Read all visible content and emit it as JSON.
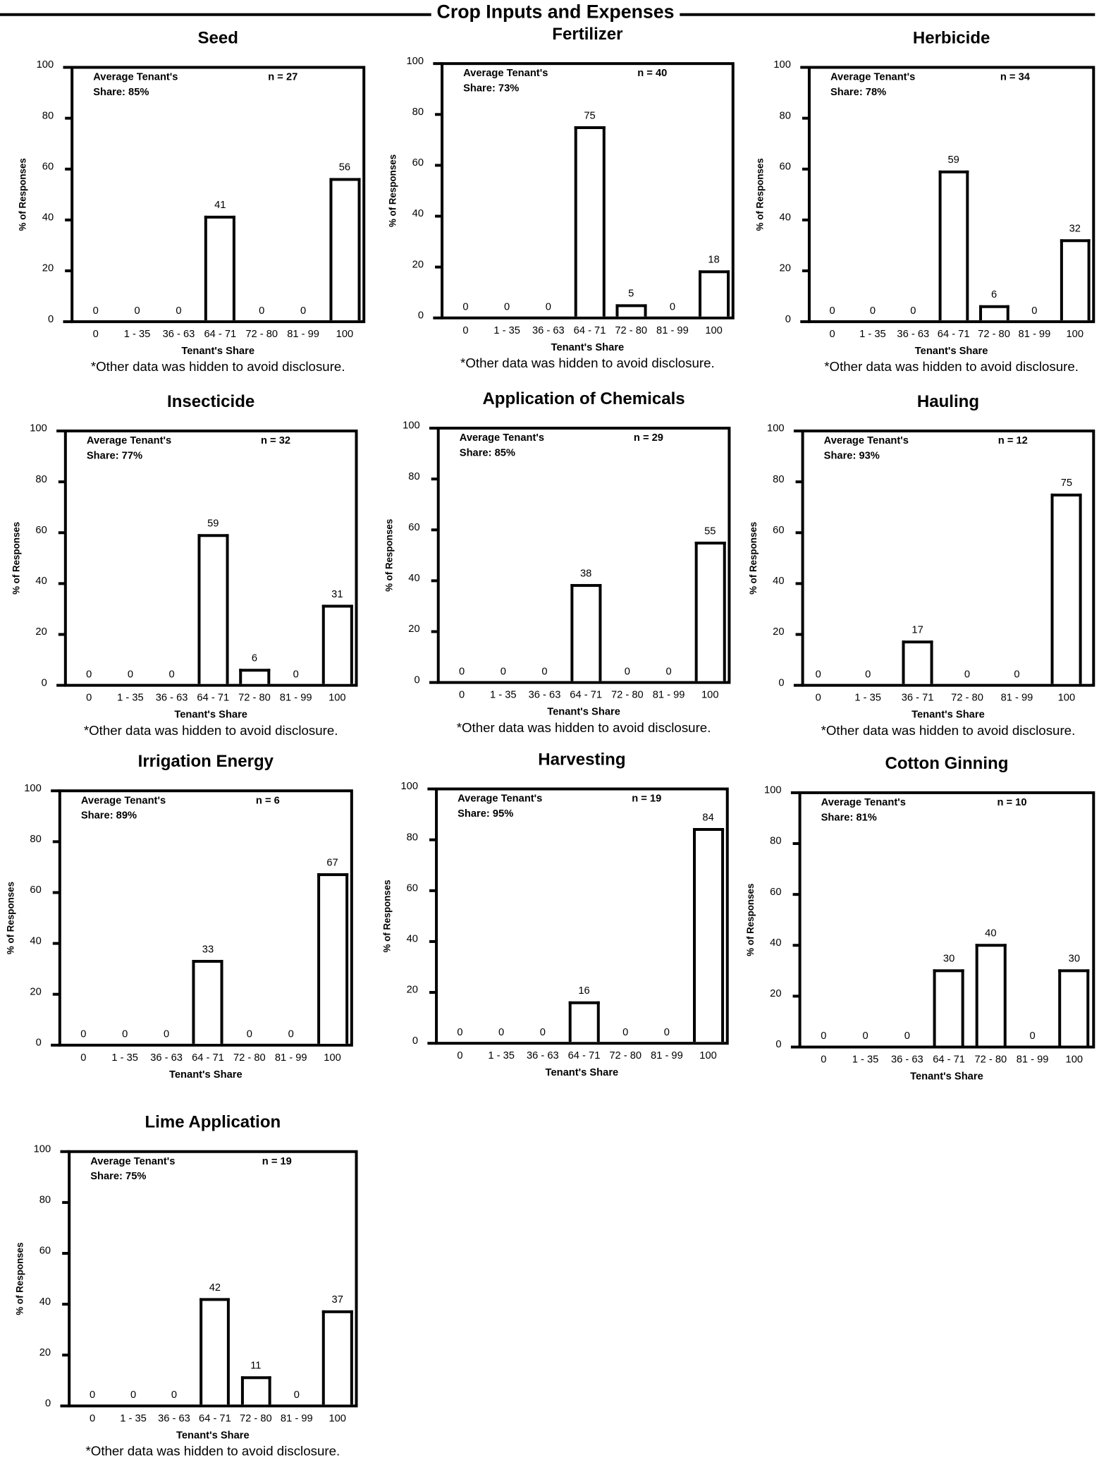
{
  "header": {
    "title": "Crop Inputs and Expenses"
  },
  "chart_data": [
    {
      "type": "bar",
      "title": "Seed",
      "avg_label": "Average Tenant's",
      "avg_share": "Share: 85%",
      "n": "n = 27",
      "categories": [
        "0",
        "1 - 35",
        "36 - 63",
        "64 - 71",
        "72 - 80",
        "81 - 99",
        "100"
      ],
      "values": [
        0,
        0,
        0,
        41,
        0,
        0,
        56
      ],
      "xlabel": "Tenant's Share",
      "ylabel": "% of Responses",
      "yticks": [
        "0",
        "20",
        "40",
        "60",
        "80",
        "100"
      ],
      "ylim": [
        0,
        100
      ],
      "footnote": "*Other data was hidden to avoid disclosure."
    },
    {
      "type": "bar",
      "title": "Fertilizer",
      "avg_label": "Average Tenant's",
      "avg_share": "Share: 73%",
      "n": "n = 40",
      "categories": [
        "0",
        "1 - 35",
        "36 - 63",
        "64 - 71",
        "72 - 80",
        "81 - 99",
        "100"
      ],
      "values": [
        0,
        0,
        0,
        75,
        5,
        0,
        18
      ],
      "xlabel": "Tenant's Share",
      "ylabel": "% of Responses",
      "yticks": [
        "0",
        "20",
        "40",
        "60",
        "80",
        "100"
      ],
      "ylim": [
        0,
        100
      ],
      "footnote": "*Other data was hidden to avoid disclosure."
    },
    {
      "type": "bar",
      "title": "Herbicide",
      "avg_label": "Average Tenant's",
      "avg_share": "Share: 78%",
      "n": "n = 34",
      "categories": [
        "0",
        "1 - 35",
        "36 - 63",
        "64 - 71",
        "72 - 80",
        "81 - 99",
        "100"
      ],
      "values": [
        0,
        0,
        0,
        59,
        6,
        0,
        32
      ],
      "xlabel": "Tenant's Share",
      "ylabel": "% of Responses",
      "yticks": [
        "0",
        "20",
        "40",
        "60",
        "80",
        "100"
      ],
      "ylim": [
        0,
        100
      ],
      "footnote": "*Other data was hidden to avoid disclosure."
    },
    {
      "type": "bar",
      "title": "Insecticide",
      "avg_label": "Average Tenant's",
      "avg_share": "Share: 77%",
      "n": "n = 32",
      "categories": [
        "0",
        "1 - 35",
        "36 - 63",
        "64 - 71",
        "72 - 80",
        "81 - 99",
        "100"
      ],
      "values": [
        0,
        0,
        0,
        59,
        6,
        0,
        31
      ],
      "xlabel": "Tenant's Share",
      "ylabel": "% of Responses",
      "yticks": [
        "0",
        "20",
        "40",
        "60",
        "80",
        "100"
      ],
      "ylim": [
        0,
        100
      ],
      "footnote": "*Other data was hidden to avoid disclosure."
    },
    {
      "type": "bar",
      "title": "Application of Chemicals",
      "avg_label": "Average Tenant's",
      "avg_share": "Share: 85%",
      "n": "n = 29",
      "categories": [
        "0",
        "1 - 35",
        "36 - 63",
        "64 - 71",
        "72 - 80",
        "81 - 99",
        "100"
      ],
      "values": [
        0,
        0,
        0,
        38,
        0,
        0,
        55
      ],
      "xlabel": "Tenant's Share",
      "ylabel": "% of Responses",
      "yticks": [
        "0",
        "20",
        "40",
        "60",
        "80",
        "100"
      ],
      "ylim": [
        0,
        100
      ],
      "footnote": "*Other data was hidden to avoid disclosure."
    },
    {
      "type": "bar",
      "title": "Hauling",
      "avg_label": "Average Tenant's",
      "avg_share": "Share: 93%",
      "n": "n = 12",
      "categories": [
        "0",
        "1 - 35",
        "36 - 71",
        "72 - 80",
        "81 - 99",
        "100"
      ],
      "values": [
        0,
        0,
        17,
        0,
        0,
        75
      ],
      "xlabel": "Tenant's Share",
      "ylabel": "% of Responses",
      "yticks": [
        "0",
        "20",
        "40",
        "60",
        "80",
        "100"
      ],
      "ylim": [
        0,
        100
      ],
      "footnote": "*Other data was hidden to avoid disclosure."
    },
    {
      "type": "bar",
      "title": "Irrigation Energy",
      "avg_label": "Average Tenant's",
      "avg_share": "Share: 89%",
      "n": "n = 6",
      "categories": [
        "0",
        "1 - 35",
        "36 - 63",
        "64 - 71",
        "72 - 80",
        "81 - 99",
        "100"
      ],
      "values": [
        0,
        0,
        0,
        33,
        0,
        0,
        67
      ],
      "xlabel": "Tenant's Share",
      "ylabel": "% of Responses",
      "yticks": [
        "0",
        "20",
        "40",
        "60",
        "80",
        "100"
      ],
      "ylim": [
        0,
        100
      ],
      "footnote": null
    },
    {
      "type": "bar",
      "title": "Harvesting",
      "avg_label": "Average Tenant's",
      "avg_share": "Share: 95%",
      "n": "n = 19",
      "categories": [
        "0",
        "1 - 35",
        "36 - 63",
        "64 - 71",
        "72 - 80",
        "81 - 99",
        "100"
      ],
      "values": [
        0,
        0,
        0,
        16,
        0,
        0,
        84
      ],
      "xlabel": "Tenant's Share",
      "ylabel": "% of Responses",
      "yticks": [
        "0",
        "20",
        "40",
        "60",
        "80",
        "100"
      ],
      "ylim": [
        0,
        100
      ],
      "footnote": null
    },
    {
      "type": "bar",
      "title": "Cotton Ginning",
      "avg_label": "Average Tenant's",
      "avg_share": "Share: 81%",
      "n": "n = 10",
      "categories": [
        "0",
        "1 - 35",
        "36 - 63",
        "64 - 71",
        "72 - 80",
        "81 - 99",
        "100"
      ],
      "values": [
        0,
        0,
        0,
        30,
        40,
        0,
        30
      ],
      "xlabel": "Tenant's Share",
      "ylabel": "% of Responses",
      "yticks": [
        "0",
        "20",
        "40",
        "60",
        "80",
        "100"
      ],
      "ylim": [
        0,
        100
      ],
      "footnote": null
    },
    {
      "type": "bar",
      "title": "Lime Application",
      "avg_label": "Average Tenant's",
      "avg_share": "Share: 75%",
      "n": "n = 19",
      "categories": [
        "0",
        "1 - 35",
        "36 - 63",
        "64 - 71",
        "72 - 80",
        "81 - 99",
        "100"
      ],
      "values": [
        0,
        0,
        0,
        42,
        11,
        0,
        37
      ],
      "xlabel": "Tenant's Share",
      "ylabel": "% of Responses",
      "yticks": [
        "0",
        "20",
        "40",
        "60",
        "80",
        "100"
      ],
      "ylim": [
        0,
        100
      ],
      "footnote": "*Other data was hidden to avoid disclosure."
    }
  ]
}
